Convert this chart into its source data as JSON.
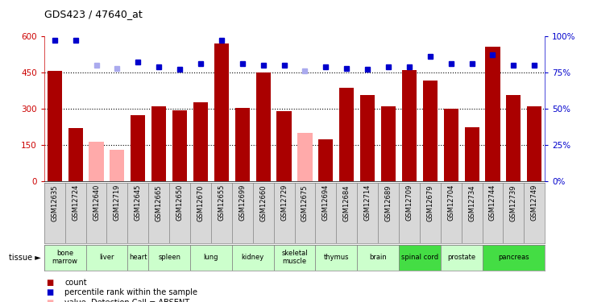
{
  "title": "GDS423 / 47640_at",
  "samples": [
    "GSM12635",
    "GSM12724",
    "GSM12640",
    "GSM12719",
    "GSM12645",
    "GSM12665",
    "GSM12650",
    "GSM12670",
    "GSM12655",
    "GSM12699",
    "GSM12660",
    "GSM12729",
    "GSM12675",
    "GSM12694",
    "GSM12684",
    "GSM12714",
    "GSM12689",
    "GSM12709",
    "GSM12679",
    "GSM12704",
    "GSM12734",
    "GSM12744",
    "GSM12739",
    "GSM12749"
  ],
  "bar_values": [
    455,
    220,
    165,
    130,
    275,
    310,
    295,
    325,
    570,
    305,
    450,
    290,
    200,
    175,
    385,
    355,
    310,
    460,
    415,
    300,
    225,
    555,
    355,
    310
  ],
  "bar_absent": [
    false,
    false,
    true,
    true,
    false,
    false,
    false,
    false,
    false,
    false,
    false,
    false,
    true,
    false,
    false,
    false,
    false,
    false,
    false,
    false,
    false,
    false,
    false,
    false
  ],
  "rank_values": [
    97,
    97,
    80,
    78,
    82,
    79,
    77,
    81,
    97,
    81,
    80,
    80,
    76,
    79,
    78,
    77,
    79,
    79,
    86,
    81,
    81,
    87,
    80,
    80
  ],
  "rank_absent": [
    false,
    false,
    true,
    true,
    false,
    false,
    false,
    false,
    false,
    false,
    false,
    false,
    true,
    false,
    false,
    false,
    false,
    false,
    false,
    false,
    false,
    false,
    false,
    false
  ],
  "tissues": [
    {
      "name": "bone\nmarrow",
      "cols": [
        0,
        1
      ],
      "color": "#ccffcc"
    },
    {
      "name": "liver",
      "cols": [
        2,
        3
      ],
      "color": "#ccffcc"
    },
    {
      "name": "heart",
      "cols": [
        4
      ],
      "color": "#ccffcc"
    },
    {
      "name": "spleen",
      "cols": [
        5,
        6
      ],
      "color": "#ccffcc"
    },
    {
      "name": "lung",
      "cols": [
        7,
        8
      ],
      "color": "#ccffcc"
    },
    {
      "name": "kidney",
      "cols": [
        9,
        10
      ],
      "color": "#ccffcc"
    },
    {
      "name": "skeletal\nmuscle",
      "cols": [
        11,
        12
      ],
      "color": "#ccffcc"
    },
    {
      "name": "thymus",
      "cols": [
        13,
        14
      ],
      "color": "#ccffcc"
    },
    {
      "name": "brain",
      "cols": [
        15,
        16
      ],
      "color": "#ccffcc"
    },
    {
      "name": "spinal cord",
      "cols": [
        17,
        18
      ],
      "color": "#44dd44"
    },
    {
      "name": "prostate",
      "cols": [
        19,
        20
      ],
      "color": "#ccffcc"
    },
    {
      "name": "pancreas",
      "cols": [
        21,
        22,
        23
      ],
      "color": "#44dd44"
    }
  ],
  "ylim_left": [
    0,
    600
  ],
  "ylim_right": [
    0,
    100
  ],
  "yticks_left": [
    0,
    150,
    300,
    450,
    600
  ],
  "yticks_right": [
    0,
    25,
    50,
    75,
    100
  ],
  "bar_color_present": "#aa0000",
  "bar_color_absent": "#ffaaaa",
  "dot_color_present": "#0000cc",
  "dot_color_absent": "#aaaaee",
  "plot_bg": "#ffffff",
  "xtick_bg": "#d8d8d8"
}
